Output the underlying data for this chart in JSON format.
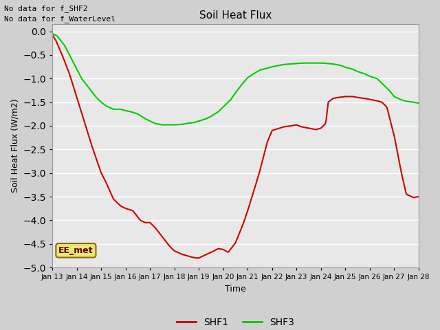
{
  "title": "Soil Heat Flux",
  "ylabel": "Soil Heat Flux (W/m2)",
  "xlabel": "Time",
  "ylim": [
    -5.0,
    0.15
  ],
  "yticks": [
    0.0,
    -0.5,
    -1.0,
    -1.5,
    -2.0,
    -2.5,
    -3.0,
    -3.5,
    -4.0,
    -4.5,
    -5.0
  ],
  "xtick_labels": [
    "Jan 13",
    "Jan 14",
    "Jan 15",
    "Jan 16",
    "Jan 17",
    "Jan 18",
    "Jan 19",
    "Jan 20",
    "Jan 21",
    "Jan 22",
    "Jan 23",
    "Jan 24",
    "Jan 25",
    "Jan 26",
    "Jan 27",
    "Jan 28"
  ],
  "annotations": [
    "No data for f_SHF2",
    "No data for f_WaterLevel"
  ],
  "legend_box_label": "EE_met",
  "legend_box_color": "#e8e878",
  "legend_box_border": "#8b6914",
  "bg_color": "#e8e8e8",
  "shf1_color": "#cc0000",
  "shf3_color": "#00cc00",
  "shf1_xp": [
    0,
    0.15,
    0.4,
    0.7,
    1.0,
    1.3,
    1.6,
    1.8,
    2.0,
    2.2,
    2.5,
    2.8,
    3.0,
    3.3,
    3.6,
    3.8,
    4.0,
    4.2,
    4.5,
    4.8,
    5.0,
    5.3,
    5.5,
    5.7,
    5.9,
    6.0,
    6.2,
    6.5,
    6.8,
    7.0,
    7.2,
    7.5,
    7.8,
    8.0,
    8.3,
    8.5,
    8.8,
    9.0,
    9.3,
    9.5,
    9.8,
    10.0,
    10.2,
    10.5,
    10.8,
    11.0,
    11.2,
    11.3,
    11.5,
    11.7,
    12.0,
    12.3,
    12.5,
    12.8,
    13.0,
    13.3,
    13.5,
    13.7,
    14.0,
    14.3,
    14.5,
    14.8,
    15.0
  ],
  "shf1_yp": [
    -0.08,
    -0.2,
    -0.5,
    -0.9,
    -1.4,
    -1.9,
    -2.4,
    -2.7,
    -3.0,
    -3.2,
    -3.55,
    -3.7,
    -3.75,
    -3.8,
    -4.0,
    -4.05,
    -4.05,
    -4.15,
    -4.35,
    -4.55,
    -4.65,
    -4.72,
    -4.75,
    -4.78,
    -4.8,
    -4.8,
    -4.75,
    -4.68,
    -4.6,
    -4.62,
    -4.68,
    -4.48,
    -4.1,
    -3.8,
    -3.3,
    -2.95,
    -2.35,
    -2.1,
    -2.05,
    -2.02,
    -2.0,
    -1.98,
    -2.02,
    -2.05,
    -2.08,
    -2.05,
    -1.95,
    -1.5,
    -1.42,
    -1.4,
    -1.38,
    -1.38,
    -1.4,
    -1.42,
    -1.44,
    -1.47,
    -1.5,
    -1.6,
    -2.2,
    -3.0,
    -3.45,
    -3.52,
    -3.5
  ],
  "shf3_xp": [
    0,
    0.2,
    0.5,
    0.8,
    1.0,
    1.2,
    1.5,
    1.8,
    2.0,
    2.2,
    2.5,
    2.8,
    3.0,
    3.2,
    3.5,
    3.8,
    4.0,
    4.2,
    4.5,
    4.8,
    5.0,
    5.3,
    5.5,
    5.8,
    6.0,
    6.3,
    6.5,
    6.8,
    7.0,
    7.3,
    7.5,
    7.8,
    8.0,
    8.3,
    8.5,
    8.8,
    9.0,
    9.3,
    9.5,
    9.8,
    10.0,
    10.3,
    10.5,
    10.8,
    11.0,
    11.3,
    11.5,
    11.8,
    12.0,
    12.3,
    12.5,
    12.8,
    13.0,
    13.3,
    13.5,
    13.8,
    14.0,
    14.3,
    14.5,
    14.8,
    15.0
  ],
  "shf3_yp": [
    -0.05,
    -0.1,
    -0.3,
    -0.6,
    -0.8,
    -1.0,
    -1.2,
    -1.4,
    -1.5,
    -1.58,
    -1.65,
    -1.65,
    -1.68,
    -1.7,
    -1.75,
    -1.85,
    -1.9,
    -1.95,
    -1.98,
    -1.98,
    -1.98,
    -1.97,
    -1.95,
    -1.93,
    -1.9,
    -1.85,
    -1.8,
    -1.7,
    -1.6,
    -1.45,
    -1.3,
    -1.1,
    -0.98,
    -0.88,
    -0.82,
    -0.78,
    -0.75,
    -0.72,
    -0.7,
    -0.69,
    -0.68,
    -0.67,
    -0.67,
    -0.67,
    -0.67,
    -0.68,
    -0.69,
    -0.72,
    -0.76,
    -0.8,
    -0.85,
    -0.9,
    -0.95,
    -1.0,
    -1.1,
    -1.25,
    -1.38,
    -1.45,
    -1.48,
    -1.5,
    -1.52
  ]
}
